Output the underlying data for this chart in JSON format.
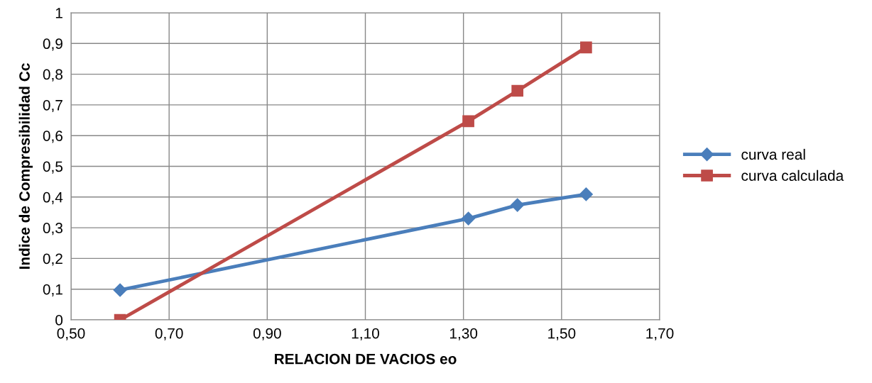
{
  "chart_data": {
    "type": "line",
    "xlabel": "RELACION DE VACIOS eo",
    "ylabel": "Indice de Compresibilidad Cc",
    "xlim": [
      0.5,
      1.7
    ],
    "xticks": [
      {
        "value": 0.5,
        "label": "0,50"
      },
      {
        "value": 0.7,
        "label": "0,70"
      },
      {
        "value": 0.9,
        "label": "0,90"
      },
      {
        "value": 1.1,
        "label": "1,10"
      },
      {
        "value": 1.3,
        "label": "1,30"
      },
      {
        "value": 1.5,
        "label": "1,50"
      },
      {
        "value": 1.7,
        "label": "1,70"
      }
    ],
    "ylim": [
      0,
      1
    ],
    "yticks": [
      0,
      {
        "value": 0.1,
        "label": "0,1"
      },
      {
        "value": 0.2,
        "label": "0,2"
      },
      {
        "value": 0.3,
        "label": "0,3"
      },
      {
        "value": 0.4,
        "label": "0,4"
      },
      {
        "value": 0.5,
        "label": "0,5"
      },
      {
        "value": 0.6,
        "label": "0,6"
      },
      {
        "value": 0.7,
        "label": "0,7"
      },
      {
        "value": 0.8,
        "label": "0,8"
      },
      {
        "value": 0.9,
        "label": "0,9"
      },
      1
    ],
    "grid": true,
    "legend": "right",
    "line_style": "solid",
    "series": [
      {
        "name": "curva real",
        "color": "#4a7ebb",
        "marker": "diamond",
        "x": [
          0.6,
          1.31,
          1.41,
          1.55
        ],
        "values": [
          0.097,
          0.33,
          0.374,
          0.409
        ]
      },
      {
        "name": "curva calculada",
        "color": "#be4b48",
        "marker": "square",
        "x": [
          0.6,
          1.31,
          1.41,
          1.55
        ],
        "values": [
          0,
          0.647,
          0.746,
          0.887
        ]
      }
    ]
  }
}
